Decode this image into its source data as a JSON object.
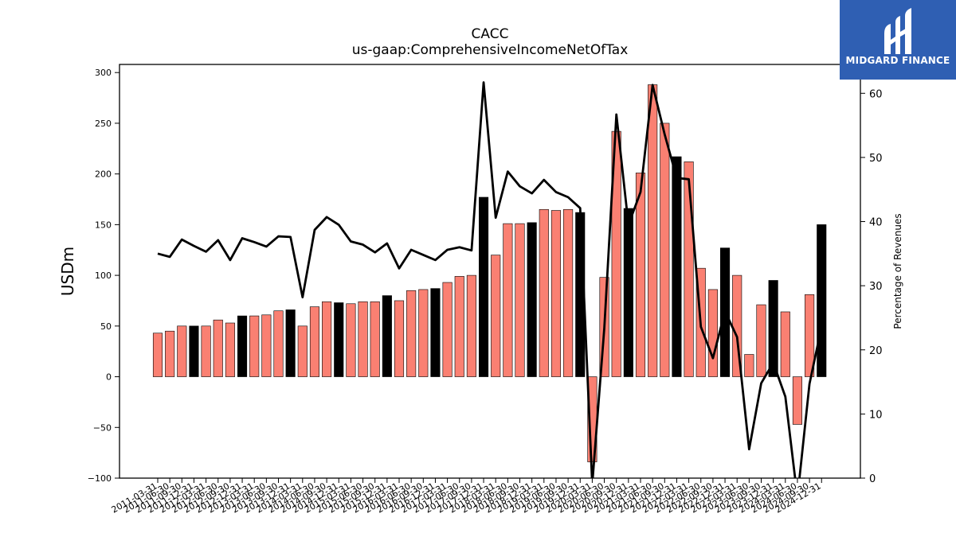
{
  "brand": {
    "name": "MIDGARD FINANCE",
    "bg_color": "#2f5fb3"
  },
  "chart_data": {
    "type": "bar",
    "title": "CACC",
    "subtitle": "us-gaap:ComprehensiveIncomeNetOfTax",
    "ylabel": "USDm",
    "y2label": "Percentage of Revenues",
    "ylim": [
      -100,
      308
    ],
    "y2lim": [
      0,
      64.5
    ],
    "yticks": [
      -100,
      -50,
      0,
      50,
      100,
      150,
      200,
      250,
      300
    ],
    "y2ticks": [
      0,
      10,
      20,
      30,
      40,
      50,
      60
    ],
    "colors": {
      "quarter": "#fa8072",
      "annual": "#000000",
      "line": "#000000"
    },
    "categories": [
      "2011-03-31",
      "2011-06-30",
      "2011-09-30",
      "2011-12-31",
      "2012-03-31",
      "2012-06-30",
      "2012-09-30",
      "2012-12-31",
      "2013-03-31",
      "2013-06-30",
      "2013-09-30",
      "2013-12-31",
      "2014-03-31",
      "2014-06-30",
      "2014-09-30",
      "2014-12-31",
      "2015-03-31",
      "2015-06-30",
      "2015-09-30",
      "2015-12-31",
      "2016-03-31",
      "2016-06-30",
      "2016-09-30",
      "2016-12-31",
      "2017-03-31",
      "2017-06-30",
      "2017-09-30",
      "2017-12-31",
      "2018-03-31",
      "2018-06-30",
      "2018-09-30",
      "2018-12-31",
      "2019-03-31",
      "2019-06-30",
      "2019-09-30",
      "2019-12-31",
      "2020-03-31",
      "2020-06-30",
      "2020-09-30",
      "2020-12-31",
      "2021-03-31",
      "2021-06-30",
      "2021-09-30",
      "2021-12-31",
      "2022-03-31",
      "2022-06-30",
      "2022-09-30",
      "2022-12-31",
      "2023-03-31",
      "2023-06-30",
      "2023-09-30",
      "2023-12-31",
      "2024-03-31",
      "2024-06-30",
      "2024-09-30",
      "2024-12-31"
    ],
    "xtick_labels": [
      "2011-03-31",
      "2011-06-30",
      "2011-09-30",
      "2011-12-31",
      "2012-03-31",
      "2012-06-30",
      "2012-09-30",
      "2012-12-31",
      "2013-03-31",
      "2013-06-30",
      "2013-09-30",
      "2013-12-31",
      "2014-03-31",
      "2014-06-30",
      "2014-09-30",
      "2014-12-31",
      "2015-03-31",
      "2015-06-30",
      "2015-09-30",
      "2015-12-31",
      "2016-03-31",
      "2016-06-30",
      "2016-09-30",
      "2016-12-31",
      "2017-03-31",
      "2017-06-30",
      "2017-09-30",
      "2017-12-31",
      "2018-03-31",
      "2018-06-30",
      "2018-09-30",
      "2018-12-31",
      "2019-03-31",
      "2019-06-30",
      "2019-09-30",
      "2019-12-31",
      "2020-03-31",
      "2020-06-30",
      "2020-09-30",
      "2020-12-31",
      "2021-03-31",
      "2021-06-30",
      "2021-09-30",
      "2021-12-31",
      "2022-03-31",
      "2022-06-30",
      "2022-09-30",
      "2022-12-31",
      "2023-03-31",
      "2023-06-30",
      "2023-09-30",
      "2023-12-31",
      "2024-03-31",
      "2024-06-30",
      "2024-09-30",
      "2024-12-31"
    ],
    "bars": [
      43,
      45,
      50,
      50,
      50,
      56,
      53,
      60,
      60,
      61,
      65,
      66,
      50,
      69,
      74,
      73,
      72,
      74,
      74,
      80,
      75,
      85,
      86,
      87,
      93,
      99,
      100,
      177,
      120,
      151,
      151,
      152,
      165,
      164,
      165,
      162,
      -84,
      98,
      242,
      166,
      201,
      288,
      250,
      217,
      212,
      107,
      86,
      127,
      100,
      22,
      71,
      95,
      64,
      -47,
      81,
      150
    ],
    "annual": [
      false,
      false,
      false,
      true,
      false,
      false,
      false,
      true,
      false,
      false,
      false,
      true,
      false,
      false,
      false,
      true,
      false,
      false,
      false,
      true,
      false,
      false,
      false,
      true,
      false,
      false,
      false,
      true,
      false,
      false,
      false,
      true,
      false,
      false,
      false,
      true,
      false,
      false,
      false,
      true,
      false,
      false,
      false,
      true,
      false,
      false,
      false,
      true,
      false,
      false,
      false,
      true,
      false,
      false,
      false,
      true
    ],
    "pct_revenue": [
      35,
      34.5,
      37.2,
      36.2,
      35.3,
      37.1,
      34,
      37.4,
      36.8,
      36.1,
      37.7,
      37.6,
      28.2,
      38.7,
      40.7,
      39.5,
      36.9,
      36.4,
      35.2,
      36.6,
      32.7,
      35.6,
      34.8,
      34,
      35.6,
      36,
      35.5,
      61.7,
      40.6,
      47.8,
      45.5,
      44.4,
      46.5,
      44.6,
      43.8,
      42.1,
      -1,
      23.4,
      56.7,
      39.5,
      44.6,
      61.3,
      53.6,
      46.8,
      46.6,
      23.6,
      18.7,
      26,
      22,
      4.5,
      14.8,
      18,
      12.7,
      -3,
      14.7,
      23.6
    ]
  }
}
